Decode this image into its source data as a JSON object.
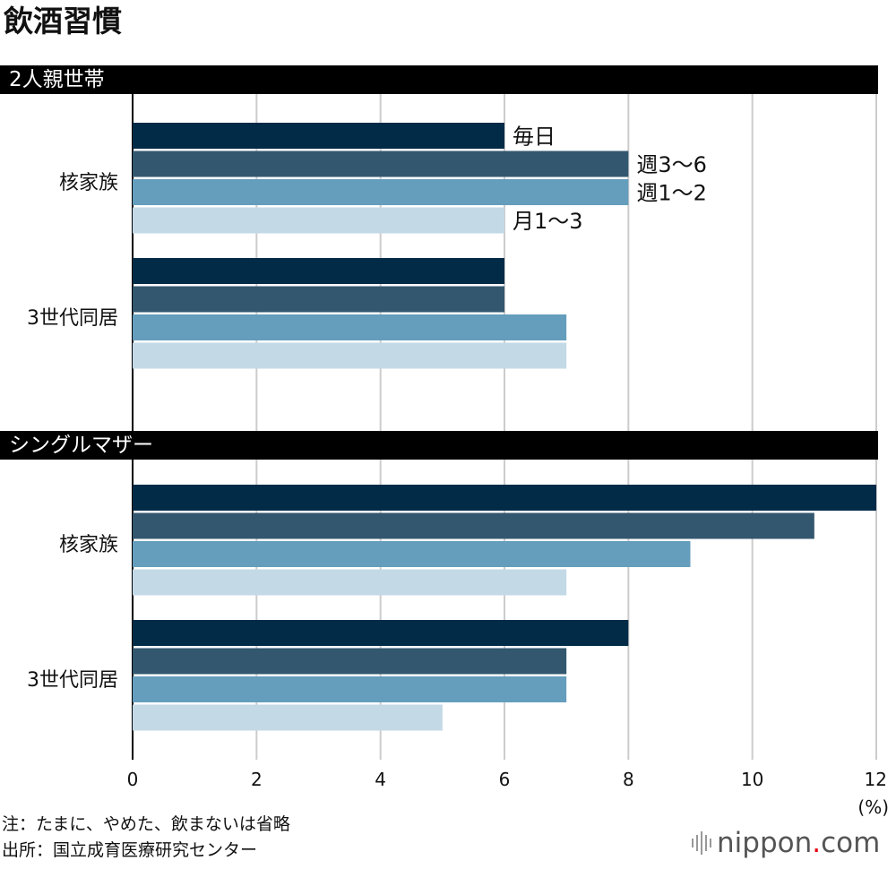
{
  "title": "飲酒習慣",
  "panels": [
    {
      "label": "2人親世帯"
    },
    {
      "label": "シングルマザー"
    }
  ],
  "chart_data": {
    "type": "bar",
    "orientation": "horizontal",
    "title": "飲酒習慣",
    "unit_label": "(%)",
    "xlim": [
      0,
      12
    ],
    "x_ticks": [
      "0",
      "2",
      "4",
      "6",
      "8",
      "10",
      "12"
    ],
    "colors": [
      "#022b48",
      "#33576f",
      "#659dbc",
      "#c3d9e6"
    ],
    "series_names": [
      "毎日",
      "週3〜6",
      "週1〜2",
      "月1〜3"
    ],
    "legend_labels": [
      "毎日",
      "週3～6",
      "週1～2",
      "月1～3"
    ],
    "panels": [
      {
        "label": "2人親世帯",
        "groups": [
          {
            "label": "核家族",
            "values": [
              6,
              8,
              8,
              6
            ]
          },
          {
            "label": "3世代同居",
            "values": [
              6,
              6,
              7,
              7
            ]
          }
        ]
      },
      {
        "label": "シングルマザー",
        "groups": [
          {
            "label": "核家族",
            "values": [
              12,
              11,
              9,
              7
            ]
          },
          {
            "label": "3世代同居",
            "values": [
              8,
              7,
              7,
              5
            ]
          }
        ]
      }
    ]
  },
  "notes": {
    "line1": "注：たまに、やめた、飲まないは省略",
    "line2": "出所：国立成育医療研究センター"
  },
  "logo": {
    "main": "nippon",
    "dot": ".",
    "suffix": "com"
  }
}
